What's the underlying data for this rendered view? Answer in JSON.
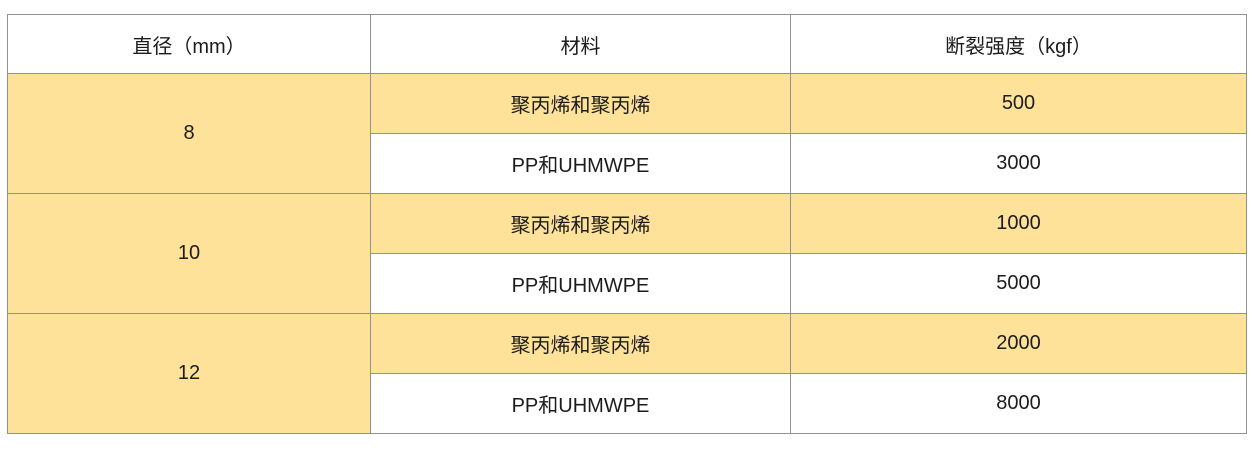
{
  "table": {
    "headers": [
      "直径（mm）",
      "材料",
      "断裂强度（kgf）"
    ],
    "groups": [
      {
        "diameter": "8",
        "rows": [
          {
            "material": "聚丙烯和聚丙烯",
            "strength": "500"
          },
          {
            "material": "PP和UHMWPE",
            "strength": "3000"
          }
        ]
      },
      {
        "diameter": "10",
        "rows": [
          {
            "material": "聚丙烯和聚丙烯",
            "strength": "1000"
          },
          {
            "material": "PP和UHMWPE",
            "strength": "5000"
          }
        ]
      },
      {
        "diameter": "12",
        "rows": [
          {
            "material": "聚丙烯和聚丙烯",
            "strength": "2000"
          },
          {
            "material": "PP和UHMWPE",
            "strength": "8000"
          }
        ]
      }
    ],
    "colors": {
      "highlight_fill": "#FFE299",
      "border": "#919191",
      "text": "#1C1C1C",
      "background": "#FFFFFF"
    }
  }
}
